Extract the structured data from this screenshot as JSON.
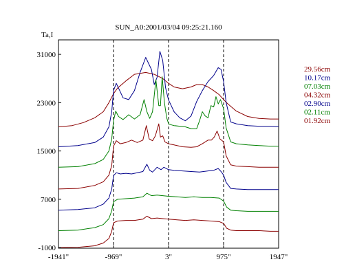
{
  "chart_data": {
    "type": "line",
    "title": "SUN_A0:2001/03/04 09:25:21.160",
    "ylabel": "Ta,I",
    "xlabel": "",
    "x_ticks": [
      {
        "value": -1941,
        "label": "-1941\""
      },
      {
        "value": -969,
        "label": "-969\""
      },
      {
        "value": 3,
        "label": "3\""
      },
      {
        "value": 975,
        "label": "975\""
      },
      {
        "value": 1947,
        "label": "1947\""
      }
    ],
    "y_ticks": [
      {
        "value": -1000,
        "label": "-1000"
      },
      {
        "value": 7000,
        "label": "7000"
      },
      {
        "value": 15000,
        "label": "15000"
      },
      {
        "value": 23000,
        "label": "23000"
      },
      {
        "value": 31000,
        "label": "31000"
      }
    ],
    "xlim": [
      -1941,
      1947
    ],
    "ylim": [
      -1100,
      33400
    ],
    "vlines": [
      -969,
      3,
      975
    ],
    "colors": {
      "dark_red": "#8b0000",
      "navy": "#00008b",
      "green": "#008000",
      "axis": "#000000"
    },
    "series": [
      {
        "name": "29.56cm",
        "color": "#8b0000",
        "x": [
          -1941,
          -1700,
          -1500,
          -1300,
          -1150,
          -1050,
          -969,
          -900,
          -750,
          -600,
          -400,
          -250,
          -100,
          3,
          100,
          250,
          400,
          500,
          600,
          700,
          800,
          900,
          975,
          1050,
          1200,
          1400,
          1600,
          1800,
          1947
        ],
        "y": [
          19000,
          19200,
          19700,
          20500,
          21500,
          23000,
          24500,
          25400,
          26600,
          27700,
          28000,
          27700,
          27000,
          26200,
          25600,
          25300,
          25600,
          26000,
          26000,
          25600,
          25000,
          24300,
          23500,
          22800,
          21600,
          20700,
          20400,
          20300,
          20300
        ]
      },
      {
        "name": "10.17cm",
        "color": "#00008b",
        "x": [
          -1941,
          -1600,
          -1300,
          -1150,
          -1050,
          -1000,
          -969,
          -920,
          -860,
          -800,
          -700,
          -600,
          -500,
          -400,
          -300,
          -250,
          -200,
          -150,
          -100,
          -50,
          0,
          50,
          100,
          200,
          300,
          400,
          500,
          600,
          700,
          800,
          880,
          930,
          975,
          1020,
          1100,
          1200,
          1400,
          1600,
          1800,
          1947
        ],
        "y": [
          15700,
          15900,
          16400,
          17300,
          19000,
          21500,
          25000,
          26200,
          25000,
          23800,
          23500,
          25000,
          28000,
          30500,
          28500,
          26000,
          27200,
          31500,
          30000,
          25500,
          23500,
          22500,
          21500,
          20500,
          20000,
          20800,
          23200,
          25000,
          26500,
          27500,
          28800,
          28500,
          26500,
          23000,
          19800,
          19500,
          19200,
          19100,
          19100,
          19000
        ]
      },
      {
        "name": "07.03cm",
        "color": "#008000",
        "x": [
          -1941,
          -1600,
          -1300,
          -1150,
          -1050,
          -1000,
          -969,
          -930,
          -880,
          -800,
          -700,
          -600,
          -500,
          -430,
          -380,
          -330,
          -280,
          -220,
          -170,
          -140,
          -110,
          -70,
          -30,
          3,
          60,
          100,
          200,
          300,
          400,
          500,
          550,
          600,
          650,
          700,
          750,
          800,
          840,
          880,
          920,
          975,
          1020,
          1100,
          1200,
          1400,
          1600,
          1800,
          1947
        ],
        "y": [
          12300,
          12400,
          12900,
          13600,
          15000,
          17000,
          20000,
          21600,
          20700,
          20200,
          21000,
          20300,
          21000,
          23500,
          21500,
          20400,
          21500,
          26800,
          22500,
          22500,
          27300,
          23000,
          20500,
          19500,
          19300,
          19200,
          19100,
          19000,
          18700,
          18700,
          20000,
          21500,
          20800,
          20500,
          22500,
          22300,
          24000,
          22800,
          23500,
          22000,
          18800,
          16500,
          16200,
          16000,
          15900,
          15800,
          15800
        ]
      },
      {
        "name": "04.32cm",
        "color": "#8b0000",
        "x": [
          -1941,
          -1600,
          -1300,
          -1150,
          -1050,
          -1000,
          -969,
          -920,
          -850,
          -750,
          -650,
          -550,
          -450,
          -390,
          -340,
          -280,
          -230,
          -170,
          -140,
          -100,
          -60,
          3,
          100,
          250,
          400,
          500,
          600,
          700,
          760,
          810,
          860,
          910,
          975,
          1020,
          1100,
          1200,
          1400,
          1600,
          1800,
          1947
        ],
        "y": [
          8700,
          8800,
          9300,
          9900,
          11000,
          12600,
          15800,
          16700,
          16200,
          16400,
          16800,
          16400,
          16800,
          19200,
          17000,
          16700,
          17500,
          19500,
          17300,
          17500,
          16500,
          16200,
          16000,
          15700,
          15600,
          15700,
          16200,
          16800,
          16800,
          17300,
          18300,
          17000,
          16500,
          14200,
          12700,
          12500,
          12400,
          12300,
          12300,
          12300
        ]
      },
      {
        "name": "02.90cm",
        "color": "#00008b",
        "x": [
          -1941,
          -1600,
          -1300,
          -1150,
          -1050,
          -1000,
          -969,
          -920,
          -850,
          -750,
          -650,
          -550,
          -450,
          -380,
          -330,
          -280,
          -200,
          -130,
          -80,
          3,
          100,
          250,
          400,
          550,
          700,
          800,
          880,
          930,
          975,
          1020,
          1100,
          1200,
          1400,
          1600,
          1800,
          1947
        ],
        "y": [
          5200,
          5300,
          5600,
          6200,
          7200,
          8700,
          10900,
          11400,
          11200,
          11300,
          11200,
          11400,
          11600,
          12800,
          11800,
          11500,
          12300,
          11900,
          12300,
          11900,
          11800,
          11700,
          11600,
          11500,
          11700,
          11800,
          12100,
          11600,
          11000,
          9800,
          8800,
          8700,
          8600,
          8600,
          8600,
          8600
        ]
      },
      {
        "name": "02.11cm",
        "color": "#008000",
        "x": [
          -1941,
          -1600,
          -1300,
          -1150,
          -1050,
          -1000,
          -969,
          -900,
          -750,
          -600,
          -450,
          -380,
          -300,
          -200,
          -100,
          3,
          150,
          300,
          450,
          600,
          750,
          900,
          975,
          1030,
          1100,
          1200,
          1400,
          1600,
          1800,
          1947
        ],
        "y": [
          1800,
          1900,
          2300,
          2800,
          3800,
          5100,
          6600,
          7000,
          7100,
          7200,
          7400,
          8000,
          7600,
          7700,
          7600,
          7500,
          7400,
          7300,
          7400,
          7300,
          7300,
          7200,
          6700,
          5700,
          5200,
          5100,
          5000,
          5000,
          5000,
          5000
        ]
      },
      {
        "name": "01.92cm",
        "color": "#8b0000",
        "x": [
          -1941,
          -1600,
          -1300,
          -1150,
          -1050,
          -1000,
          -969,
          -900,
          -750,
          -600,
          -450,
          -380,
          -300,
          -200,
          -100,
          3,
          150,
          300,
          450,
          600,
          750,
          900,
          975,
          1030,
          1100,
          1200,
          1400,
          1600,
          1800,
          1947
        ],
        "y": [
          -1000,
          -950,
          -700,
          -250,
          500,
          1700,
          3100,
          3400,
          3500,
          3500,
          3700,
          4200,
          3800,
          3900,
          3800,
          3700,
          3600,
          3500,
          3600,
          3500,
          3400,
          3300,
          3000,
          2200,
          1900,
          1800,
          1800,
          1800,
          1700,
          1700
        ]
      }
    ]
  }
}
